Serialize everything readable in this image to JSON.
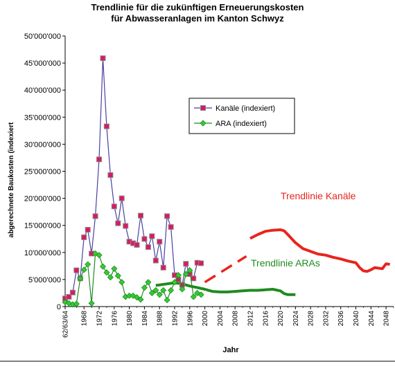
{
  "chart_data": {
    "type": "line",
    "title_line1": "Trendlinie für die zukünftigen Erneuerungskosten",
    "title_line2": "für Abwasseranlagen im Kanton Schwyz",
    "xlabel": "Jahr",
    "ylabel": "abgerechnete Baukosten (indexiert",
    "ylim": [
      0,
      50000000
    ],
    "xlim": [
      1963,
      2050
    ],
    "y_ticks": [
      "0",
      "5'000'000",
      "10'000'000",
      "15'000'000",
      "20'000'000",
      "25'000'000",
      "30'000'000",
      "35'000'000",
      "40'000'000",
      "45'000'000",
      "50'000'000"
    ],
    "x_ticks": [
      "62/63/64",
      "1968",
      "1972",
      "1976",
      "1980",
      "1984",
      "1988",
      "1992",
      "1996",
      "2000",
      "2004",
      "2008",
      "2012",
      "2016",
      "2020",
      "2024",
      "2028",
      "2032",
      "2036",
      "2040",
      "2044",
      "2048"
    ],
    "legend_position": "upper-middle",
    "series": [
      {
        "name": "Kanäle (indexiert)",
        "color": "#4a3fa0",
        "marker_color": "#d81b60",
        "points": [
          [
            1963,
            1500000
          ],
          [
            1964,
            1800000
          ],
          [
            1965,
            2600000
          ],
          [
            1966,
            6700000
          ],
          [
            1967,
            5200000
          ],
          [
            1968,
            12800000
          ],
          [
            1969,
            14200000
          ],
          [
            1970,
            9800000
          ],
          [
            1971,
            16700000
          ],
          [
            1972,
            27200000
          ],
          [
            1973,
            45900000
          ],
          [
            1974,
            33300000
          ],
          [
            1975,
            24300000
          ],
          [
            1976,
            18500000
          ],
          [
            1977,
            15400000
          ],
          [
            1978,
            20000000
          ],
          [
            1979,
            14900000
          ],
          [
            1980,
            12000000
          ],
          [
            1981,
            11700000
          ],
          [
            1982,
            11400000
          ],
          [
            1983,
            16800000
          ],
          [
            1984,
            12500000
          ],
          [
            1985,
            11000000
          ],
          [
            1986,
            13000000
          ],
          [
            1987,
            8500000
          ],
          [
            1988,
            12000000
          ],
          [
            1989,
            7200000
          ],
          [
            1990,
            16700000
          ],
          [
            1991,
            14700000
          ],
          [
            1992,
            5800000
          ],
          [
            1993,
            5000000
          ],
          [
            1994,
            4000000
          ],
          [
            1995,
            7900000
          ],
          [
            1996,
            6000000
          ],
          [
            1997,
            5200000
          ],
          [
            1998,
            8100000
          ],
          [
            1999,
            8000000
          ]
        ]
      },
      {
        "name": "ARA (indexiert)",
        "color": "#1f8a1f",
        "marker_color": "#33cc33",
        "points": [
          [
            1963,
            800000
          ],
          [
            1964,
            600000
          ],
          [
            1965,
            400000
          ],
          [
            1966,
            500000
          ],
          [
            1967,
            5200000
          ],
          [
            1968,
            6800000
          ],
          [
            1969,
            7800000
          ],
          [
            1970,
            600000
          ],
          [
            1971,
            9800000
          ],
          [
            1972,
            9500000
          ],
          [
            1973,
            7400000
          ],
          [
            1974,
            6300000
          ],
          [
            1975,
            5400000
          ],
          [
            1976,
            7000000
          ],
          [
            1977,
            5700000
          ],
          [
            1978,
            4500000
          ],
          [
            1979,
            1800000
          ],
          [
            1980,
            2000000
          ],
          [
            1981,
            2000000
          ],
          [
            1982,
            1700000
          ],
          [
            1983,
            1300000
          ],
          [
            1984,
            3500000
          ],
          [
            1985,
            4500000
          ],
          [
            1986,
            2500000
          ],
          [
            1987,
            3000000
          ],
          [
            1988,
            2200000
          ],
          [
            1989,
            3000000
          ],
          [
            1990,
            1200000
          ],
          [
            1991,
            3000000
          ],
          [
            1992,
            4500000
          ],
          [
            1993,
            5800000
          ],
          [
            1994,
            3200000
          ],
          [
            1995,
            6000000
          ],
          [
            1996,
            6700000
          ],
          [
            1997,
            1800000
          ],
          [
            1998,
            2500000
          ],
          [
            1999,
            2200000
          ]
        ]
      }
    ],
    "trendlines": [
      {
        "name": "Trendlinie Kanäle",
        "color": "#e8241c",
        "segments": [
          {
            "style": "dashed",
            "points": [
              [
                2000,
                4500000
              ],
              [
                2011,
                9300000
              ]
            ]
          },
          {
            "style": "solid",
            "points": [
              [
                2012,
                12600000
              ],
              [
                2014,
                13300000
              ],
              [
                2016,
                13900000
              ],
              [
                2018,
                14100000
              ],
              [
                2020,
                14200000
              ],
              [
                2021,
                14000000
              ],
              [
                2022,
                13300000
              ],
              [
                2024,
                11800000
              ],
              [
                2026,
                10700000
              ],
              [
                2028,
                10200000
              ],
              [
                2030,
                9700000
              ],
              [
                2032,
                9500000
              ],
              [
                2034,
                9100000
              ],
              [
                2036,
                8800000
              ],
              [
                2038,
                8400000
              ],
              [
                2040,
                8100000
              ],
              [
                2041,
                7200000
              ],
              [
                2042,
                6600000
              ],
              [
                2043,
                6500000
              ],
              [
                2044,
                6800000
              ],
              [
                2045,
                7200000
              ],
              [
                2046,
                7100000
              ],
              [
                2047,
                7000000
              ],
              [
                2048,
                7900000
              ],
              [
                2049,
                7800000
              ]
            ]
          }
        ]
      },
      {
        "name": "Trendlinie ARAs",
        "color": "#1f8a1f",
        "segments": [
          {
            "style": "solid",
            "points": [
              [
                1987,
                3900000
              ],
              [
                1990,
                4200000
              ],
              [
                1992,
                4400000
              ],
              [
                1994,
                4200000
              ],
              [
                1996,
                3800000
              ],
              [
                1998,
                3500000
              ],
              [
                2000,
                3200000
              ],
              [
                2002,
                2800000
              ],
              [
                2004,
                2700000
              ],
              [
                2006,
                2700000
              ],
              [
                2008,
                2800000
              ],
              [
                2010,
                2900000
              ],
              [
                2012,
                3000000
              ],
              [
                2014,
                3000000
              ],
              [
                2016,
                3100000
              ],
              [
                2018,
                3200000
              ],
              [
                2020,
                2900000
              ],
              [
                2021,
                2400000
              ],
              [
                2022,
                2200000
              ],
              [
                2024,
                2200000
              ]
            ]
          }
        ]
      }
    ]
  }
}
